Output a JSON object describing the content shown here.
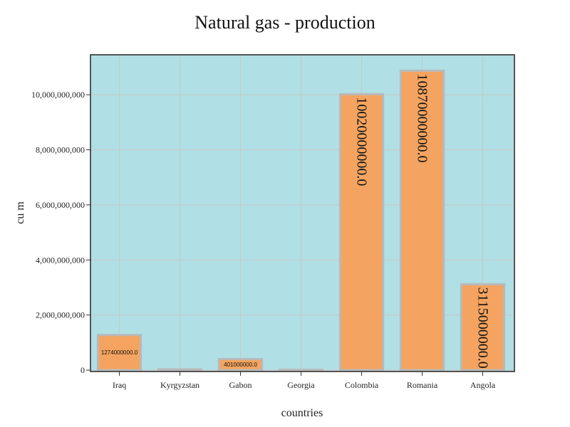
{
  "chart_data": {
    "type": "bar",
    "title": "Natural gas - production",
    "xlabel": "countries",
    "ylabel": "cu m",
    "categories": [
      "Iraq",
      "Kyrgyzstan",
      "Gabon",
      "Georgia",
      "Colombia",
      "Romania",
      "Angola"
    ],
    "values": [
      1274000000,
      30000000,
      401000000,
      10000000,
      10020000000,
      10870000000,
      3115000000
    ],
    "data_labels": [
      "1274000000.0",
      "",
      "401000000.0",
      "",
      "10020000000.0",
      "10870000000.0",
      "3115000000.0"
    ],
    "y_ticks": [
      0,
      2000000000,
      4000000000,
      6000000000,
      8000000000,
      10000000000
    ],
    "y_tick_labels": [
      "0",
      "2,000,000,000",
      "4,000,000,000",
      "6,000,000,000",
      "8,000,000,000",
      "10,000,000,000"
    ],
    "ylim": [
      -50000000,
      11450000000
    ],
    "grid": true,
    "colors": {
      "plot_background": "#b0dfe5",
      "bar_fill": "#f4a460",
      "bar_edge": "#b9b9b9",
      "grid": "#c8c8c8",
      "frame": "#555555"
    }
  }
}
